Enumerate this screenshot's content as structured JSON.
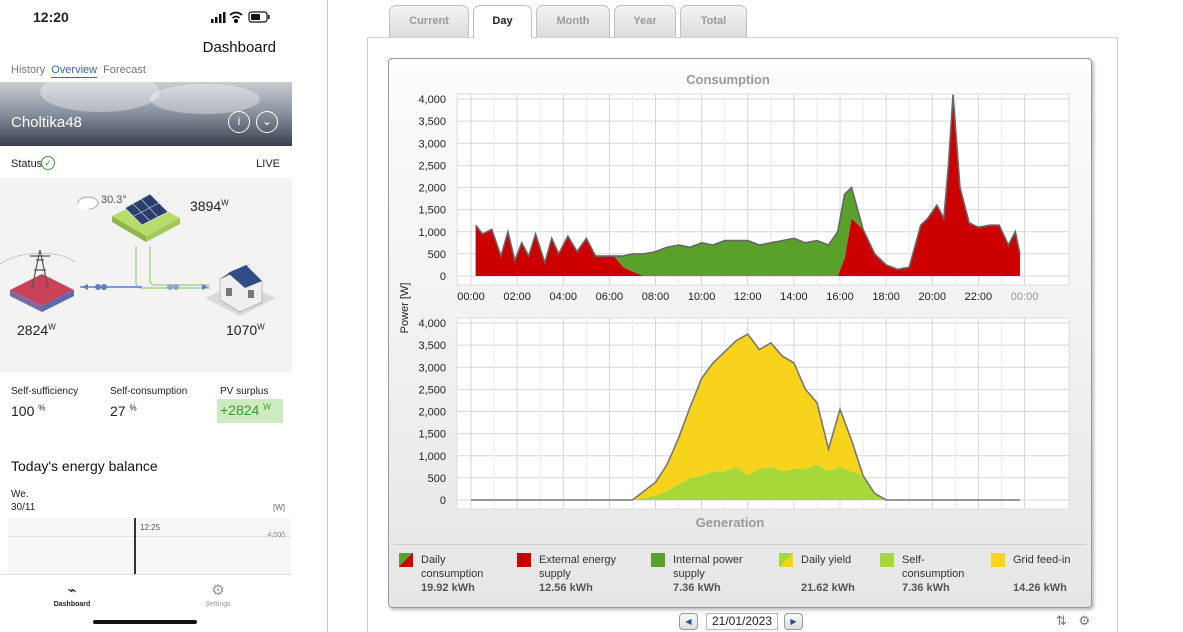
{
  "status_bar": {
    "time": "12:20"
  },
  "app": {
    "title": "Dashboard",
    "subtabs": [
      "History",
      "Overview",
      "Forecast"
    ],
    "active_subtab": "Overview",
    "plant_name": "Choltika48",
    "status_label": "Status",
    "live_label": "LIVE"
  },
  "flow": {
    "weather_temp": "30.3°",
    "pv_power": "3894",
    "grid_power": "2824",
    "house_power": "1070",
    "unit": "W"
  },
  "kpis": {
    "self_sufficiency": {
      "label": "Self-sufficiency",
      "value": "100",
      "unit": "%"
    },
    "self_consumption": {
      "label": "Self-consumption",
      "value": "27",
      "unit": "%"
    },
    "pv_surplus": {
      "label": "PV surplus",
      "value": "+2824",
      "unit": "W"
    }
  },
  "balance": {
    "heading": "Today's energy balance",
    "weekday": "We.",
    "date": "30/11",
    "unit": "[W]",
    "time_marker": "12:25",
    "axis_value": "4,000"
  },
  "bottom_nav": {
    "dashboard": "Dashboard",
    "settings": "Settings"
  },
  "portal": {
    "tabs": [
      "Current",
      "Day",
      "Month",
      "Year",
      "Total"
    ],
    "active_tab": "Day",
    "date": "21/01/2023",
    "consumption_title": "Consumption",
    "generation_title": "Generation",
    "y_axis_label": "Power [W]"
  },
  "legend": [
    {
      "name": "Daily consumption",
      "value": "19.92 kWh",
      "color": "#cc0000",
      "color2": "#5aa12b"
    },
    {
      "name": "External energy supply",
      "value": "12.56 kWh",
      "color": "#cc0000"
    },
    {
      "name": "Internal power supply",
      "value": "7.36 kWh",
      "color": "#5aa12b"
    },
    {
      "name": "Daily yield",
      "value": "21.62 kWh",
      "color": "#a6d83a",
      "color2": "#f7d31c"
    },
    {
      "name": "Self-consumption",
      "value": "7.36 kWh",
      "color": "#a6d83a"
    },
    {
      "name": "Grid feed-in",
      "value": "14.26 kWh",
      "color": "#f7d31c"
    }
  ],
  "chart_data": [
    {
      "type": "area",
      "title": "Consumption",
      "ylabel": "Power [W]",
      "ylim": [
        0,
        4000
      ],
      "yticks": [
        "0",
        "500",
        "1,000",
        "1,500",
        "2,000",
        "2,500",
        "3,000",
        "3,500",
        "4,000"
      ],
      "xticks": [
        "00:00",
        "02:00",
        "04:00",
        "06:00",
        "08:00",
        "10:00",
        "12:00",
        "14:00",
        "16:00",
        "18:00",
        "20:00",
        "22:00",
        "00:00"
      ],
      "x_hours": [
        0.2,
        0.5,
        0.9,
        1.3,
        1.6,
        1.9,
        2.2,
        2.5,
        2.8,
        3.2,
        3.5,
        3.8,
        4.2,
        4.6,
        5.0,
        5.4,
        5.8,
        6.2,
        6.6,
        7.0,
        7.5,
        8.0,
        8.5,
        9.0,
        9.5,
        10.0,
        10.5,
        11.0,
        11.5,
        12.0,
        12.5,
        13.0,
        13.5,
        14.0,
        14.5,
        15.0,
        15.5,
        15.9,
        16.2,
        16.5,
        17.0,
        17.5,
        18.0,
        18.5,
        19.0,
        19.5,
        19.8,
        20.2,
        20.5,
        20.7,
        20.9,
        21.2,
        21.6,
        22.0,
        22.5,
        22.9,
        23.3,
        23.6,
        23.8
      ],
      "series": [
        {
          "name": "External energy supply",
          "values": [
            1150,
            950,
            1050,
            450,
            1000,
            350,
            750,
            450,
            950,
            300,
            850,
            500,
            900,
            550,
            850,
            450,
            450,
            450,
            200,
            100,
            0,
            0,
            0,
            0,
            0,
            0,
            0,
            0,
            0,
            0,
            0,
            0,
            0,
            0,
            0,
            0,
            0,
            0,
            400,
            1300,
            1050,
            500,
            250,
            150,
            200,
            1150,
            1300,
            1600,
            1300,
            2500,
            4100,
            2000,
            1200,
            1100,
            1150,
            1150,
            700,
            1000,
            500
          ]
        },
        {
          "name": "Internal power supply",
          "values": [
            0,
            0,
            0,
            0,
            0,
            0,
            0,
            0,
            0,
            0,
            0,
            0,
            0,
            0,
            0,
            0,
            0,
            0,
            250,
            400,
            500,
            550,
            650,
            700,
            650,
            750,
            700,
            800,
            800,
            800,
            700,
            750,
            800,
            850,
            750,
            800,
            700,
            1000,
            1450,
            700,
            0,
            0,
            0,
            0,
            0,
            0,
            0,
            0,
            0,
            0,
            0,
            0,
            0,
            0,
            0,
            0,
            0,
            0,
            0
          ]
        }
      ]
    },
    {
      "type": "area",
      "title": "Generation",
      "ylabel": "Power [W]",
      "ylim": [
        0,
        4000
      ],
      "yticks": [
        "0",
        "500",
        "1,000",
        "1,500",
        "2,000",
        "2,500",
        "3,000",
        "3,500",
        "4,000"
      ],
      "x_hours": [
        0,
        6.5,
        7.0,
        7.5,
        8.0,
        8.5,
        9.0,
        9.5,
        10.0,
        10.5,
        11.0,
        11.5,
        12.0,
        12.5,
        13.0,
        13.5,
        14.0,
        14.5,
        15.0,
        15.5,
        16.0,
        16.5,
        17.0,
        17.5,
        18.0,
        23.8
      ],
      "series": [
        {
          "name": "Self-consumption",
          "values": [
            0,
            0,
            0,
            50,
            100,
            200,
            350,
            500,
            550,
            650,
            650,
            750,
            550,
            700,
            750,
            650,
            700,
            700,
            800,
            650,
            750,
            650,
            550,
            150,
            0,
            0
          ]
        },
        {
          "name": "Grid feed-in",
          "values": [
            0,
            0,
            0,
            150,
            300,
            600,
            1050,
            1600,
            2200,
            2450,
            2700,
            2850,
            3200,
            2700,
            2800,
            2600,
            2400,
            1800,
            1400,
            500,
            1300,
            700,
            0,
            0,
            0,
            0
          ]
        }
      ]
    }
  ]
}
